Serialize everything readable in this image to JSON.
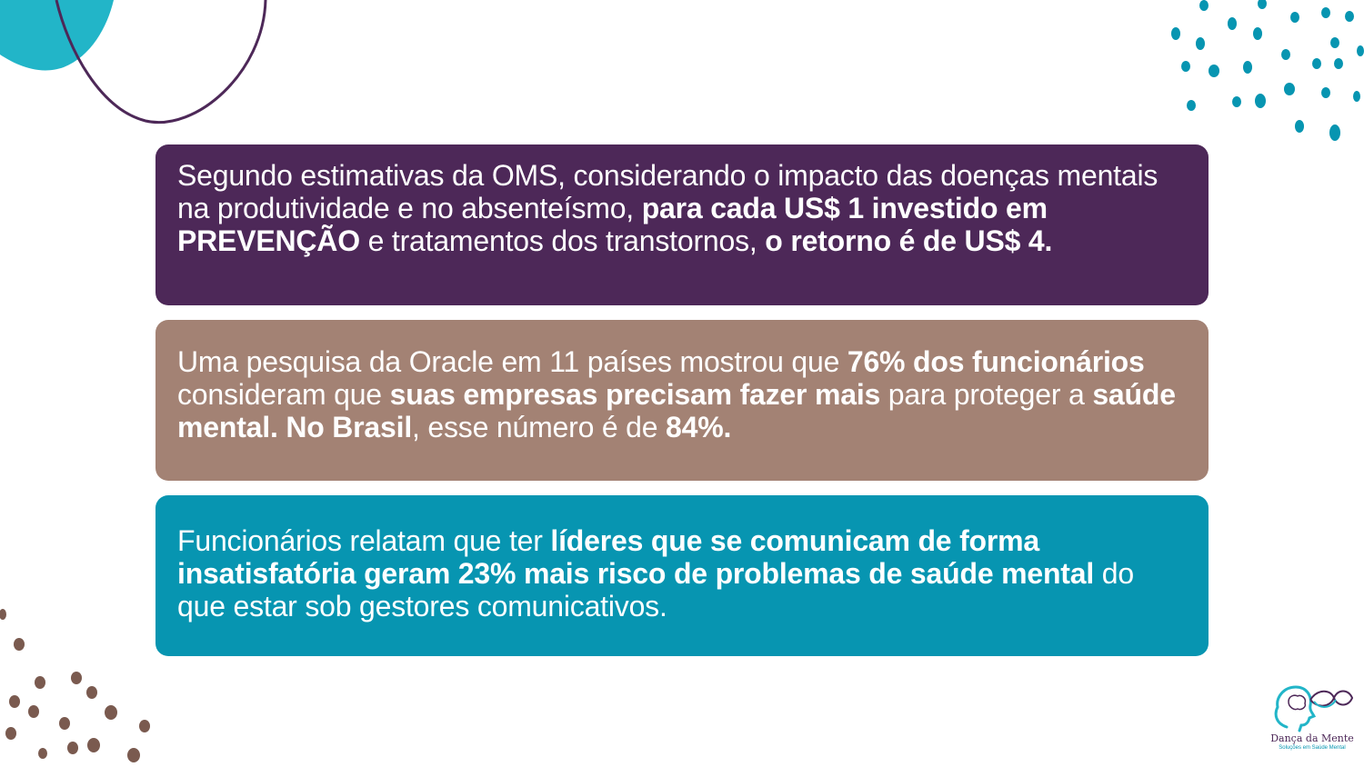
{
  "colors": {
    "purple": "#4d2858",
    "taupe": "#a38274",
    "teal": "#0795b1",
    "aqua": "#22b5c8",
    "dots_brown": "#7a5a4f"
  },
  "cards": [
    {
      "segments": [
        {
          "text": "Segundo estimativas da OMS, considerando o impacto das doenças mentais na produtividade e no absenteísmo, ",
          "bold": false
        },
        {
          "text": "para cada US$ 1 investido em PREVENÇÃO",
          "bold": true
        },
        {
          "text": " e tratamentos dos transtornos, ",
          "bold": false
        },
        {
          "text": "o retorno é de US$ 4.",
          "bold": true
        }
      ]
    },
    {
      "segments": [
        {
          "text": "Uma pesquisa da Oracle em 11 países mostrou que ",
          "bold": false
        },
        {
          "text": "76% dos funcionários",
          "bold": true
        },
        {
          "text": " consideram que ",
          "bold": false
        },
        {
          "text": "suas empresas precisam fazer mais",
          "bold": true
        },
        {
          "text": " para proteger a ",
          "bold": false
        },
        {
          "text": "saúde mental. No Brasil",
          "bold": true
        },
        {
          "text": ", esse número é de ",
          "bold": false
        },
        {
          "text": "84%.",
          "bold": true
        }
      ]
    },
    {
      "segments": [
        {
          "text": "Funcionários relatam que  ter ",
          "bold": false
        },
        {
          "text": "líderes que se comunicam de forma insatisfatória geram 23% mais risco de problemas de saúde mental",
          "bold": true
        },
        {
          "text": " do que estar sob gestores comunicativos.",
          "bold": false
        }
      ]
    }
  ],
  "logo": {
    "name": "Dança da Mente",
    "tagline": "Soluções em Saúde Mental",
    "icon": "head-infinity-icon"
  }
}
